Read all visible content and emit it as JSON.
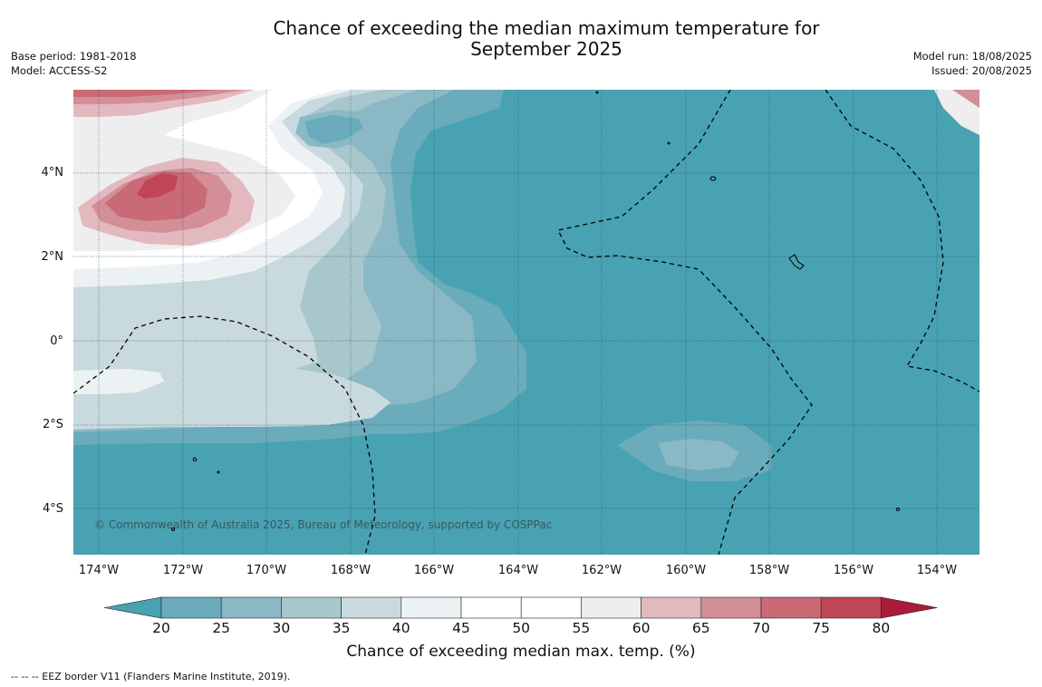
{
  "title_line1": "Chance of exceeding the median maximum temperature for",
  "title_line2": "September 2025",
  "meta_left": {
    "base_period": "Base period: 1981-2018",
    "model": "Model: ACCESS-S2"
  },
  "meta_right": {
    "model_run": "Model run: 18/08/2025",
    "issued": "Issued: 20/08/2025"
  },
  "copyright": "© Commonwealth of Australia 2025, Bureau of Meteorology, supported by COSPPac",
  "latitude_labels": [
    "4°N",
    "2°N",
    "0°",
    "2°S",
    "4°S"
  ],
  "longitude_labels": [
    "174°W",
    "172°W",
    "170°W",
    "168°W",
    "166°W",
    "164°W",
    "162°W",
    "160°W",
    "158°W",
    "156°W",
    "154°W"
  ],
  "colorbar": {
    "label": "Chance of exceeding median max. temp. (%)",
    "ticks": [
      "20",
      "25",
      "30",
      "35",
      "40",
      "45",
      "50",
      "55",
      "60",
      "65",
      "70",
      "75",
      "80"
    ],
    "colors": {
      "below_20": "#48a2b2",
      "20_25": "#6aacbb",
      "25_30": "#8ab9c5",
      "30_35": "#a8c7cd",
      "35_40": "#c9dadf",
      "40_45": "#ecf2f4",
      "45_50": "#ffffff",
      "50_55": "#ffffff",
      "55_60": "#efeeef",
      "60_65": "#e2b9bf",
      "65_70": "#d48e98",
      "70_75": "#c96a76",
      "75_80": "#bf4656",
      "above_80": "#ab1c3a"
    }
  },
  "eez_note": "--  --  -- EEZ border V11 (Flanders Marine Institute, 2019)."
}
